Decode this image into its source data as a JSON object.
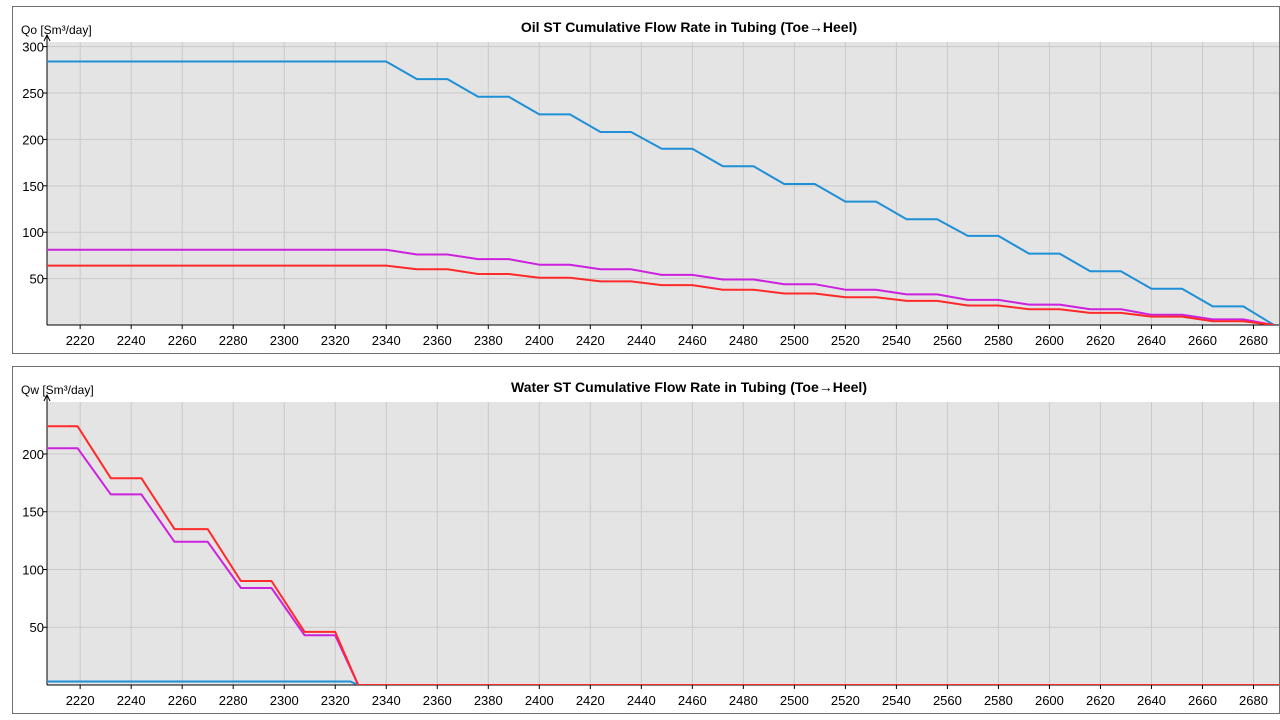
{
  "chart_data": [
    {
      "type": "line",
      "title": "Oil ST Cumulative Flow Rate in Tubing (Toe→Heel)",
      "ylabel": "Qo [Sm³/day]",
      "xlabel": "",
      "xlim": [
        2207,
        2690
      ],
      "ylim": [
        0,
        305
      ],
      "xticks": [
        2220,
        2240,
        2260,
        2280,
        2300,
        2320,
        2340,
        2360,
        2380,
        2400,
        2420,
        2440,
        2460,
        2480,
        2500,
        2520,
        2540,
        2560,
        2580,
        2600,
        2620,
        2640,
        2660,
        2680
      ],
      "yticks": [
        50,
        100,
        150,
        200,
        250,
        300
      ],
      "grid": true,
      "series": [
        {
          "color": "#1f8fd6",
          "x": [
            2207,
            2340,
            2352,
            2364,
            2376,
            2388,
            2400,
            2412,
            2424,
            2436,
            2448,
            2460,
            2472,
            2484,
            2496,
            2508,
            2520,
            2532,
            2544,
            2556,
            2568,
            2580,
            2592,
            2604,
            2616,
            2628,
            2640,
            2652,
            2664,
            2676,
            2688
          ],
          "y": [
            284,
            284,
            265,
            265,
            246,
            246,
            227,
            227,
            208,
            208,
            190,
            190,
            171,
            171,
            152,
            152,
            133,
            133,
            114,
            114,
            96,
            96,
            77,
            77,
            58,
            58,
            39,
            39,
            20,
            20,
            0
          ]
        },
        {
          "color": "#cc22dd",
          "x": [
            2207,
            2340,
            2352,
            2364,
            2376,
            2388,
            2400,
            2412,
            2424,
            2436,
            2448,
            2460,
            2472,
            2484,
            2496,
            2508,
            2520,
            2532,
            2544,
            2556,
            2568,
            2580,
            2592,
            2604,
            2616,
            2628,
            2640,
            2652,
            2664,
            2676,
            2688
          ],
          "y": [
            81,
            81,
            76,
            76,
            71,
            71,
            65,
            65,
            60,
            60,
            54,
            54,
            49,
            49,
            44,
            44,
            38,
            38,
            33,
            33,
            27,
            27,
            22,
            22,
            17,
            17,
            11,
            11,
            6,
            6,
            0
          ]
        },
        {
          "color": "#ff2a2a",
          "x": [
            2207,
            2340,
            2352,
            2364,
            2376,
            2388,
            2400,
            2412,
            2424,
            2436,
            2448,
            2460,
            2472,
            2484,
            2496,
            2508,
            2520,
            2532,
            2544,
            2556,
            2568,
            2580,
            2592,
            2604,
            2616,
            2628,
            2640,
            2652,
            2664,
            2676,
            2688
          ],
          "y": [
            64,
            64,
            60,
            60,
            55,
            55,
            51,
            51,
            47,
            47,
            43,
            43,
            38,
            38,
            34,
            34,
            30,
            30,
            26,
            26,
            21,
            21,
            17,
            17,
            13,
            13,
            9,
            9,
            4,
            4,
            0
          ]
        }
      ]
    },
    {
      "type": "line",
      "title": "Water ST Cumulative Flow Rate in Tubing (Toe→Heel)",
      "ylabel": "Qw [Sm³/day]",
      "xlabel": "",
      "xlim": [
        2207,
        2690
      ],
      "ylim": [
        0,
        245
      ],
      "xticks": [
        2220,
        2240,
        2260,
        2280,
        2300,
        2320,
        2340,
        2360,
        2380,
        2400,
        2420,
        2440,
        2460,
        2480,
        2500,
        2520,
        2540,
        2560,
        2580,
        2600,
        2620,
        2640,
        2660,
        2680
      ],
      "yticks": [
        50,
        100,
        150,
        200
      ],
      "grid": true,
      "series": [
        {
          "color": "#1f8fd6",
          "x": [
            2207,
            2326,
            2329,
            2690
          ],
          "y": [
            3,
            3,
            0,
            0
          ]
        },
        {
          "color": "#cc22dd",
          "x": [
            2207,
            2219,
            2232,
            2244,
            2257,
            2270,
            2283,
            2295,
            2308,
            2320,
            2329,
            2690
          ],
          "y": [
            205,
            205,
            165,
            165,
            124,
            124,
            84,
            84,
            43,
            43,
            0,
            0
          ]
        },
        {
          "color": "#ff2a2a",
          "x": [
            2207,
            2219,
            2232,
            2244,
            2257,
            2270,
            2283,
            2295,
            2308,
            2320,
            2329,
            2690
          ],
          "y": [
            224,
            224,
            179,
            179,
            135,
            135,
            90,
            90,
            46,
            46,
            0,
            0
          ]
        }
      ]
    }
  ]
}
